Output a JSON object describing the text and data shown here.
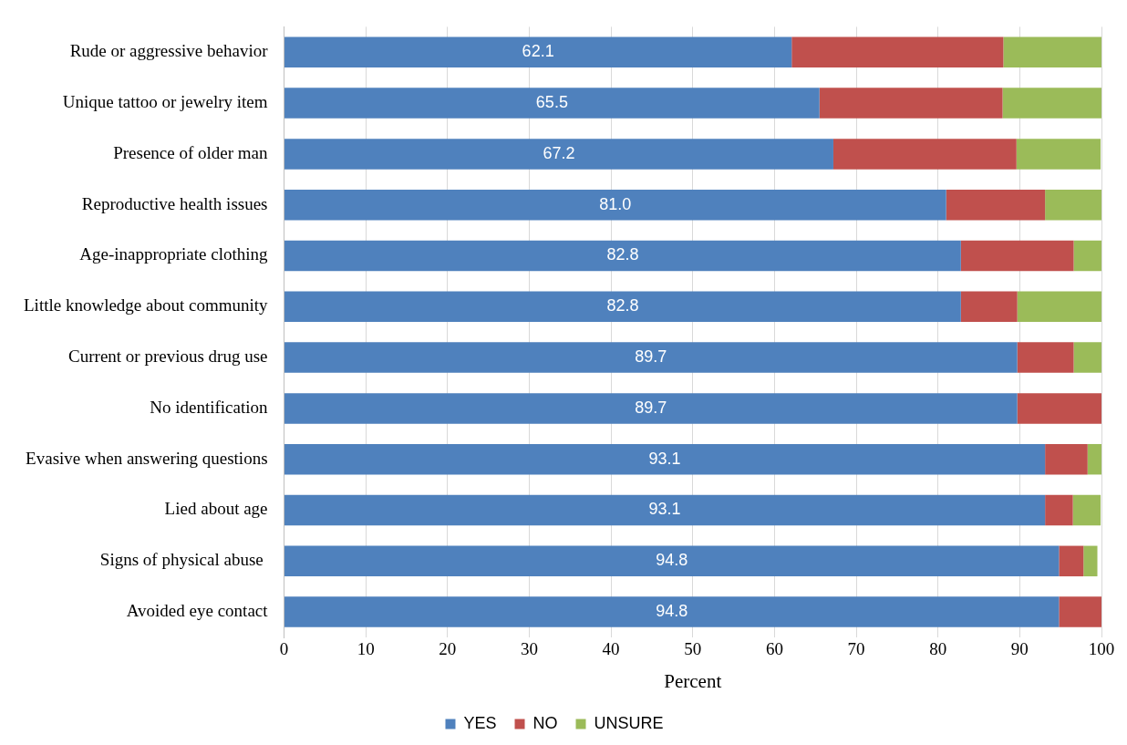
{
  "chart_data": {
    "type": "bar",
    "orientation": "horizontal",
    "stacked": true,
    "categories": [
      "Rude or aggressive behavior",
      "Unique tattoo or jewelry item",
      "Presence of older man",
      "Reproductive health issues",
      "Age-inappropriate clothing",
      "Little knowledge about community",
      "Current or previous drug use",
      "No identification",
      "Evasive when answering questions",
      "Lied about age",
      "Signs of physical abuse ",
      "Avoided eye contact"
    ],
    "series": [
      {
        "name": "YES",
        "color": "#4f81bd",
        "values": [
          62.1,
          65.5,
          67.2,
          81.0,
          82.8,
          82.8,
          89.7,
          89.7,
          93.1,
          93.1,
          94.8,
          94.8
        ],
        "value_labels": [
          "62.1",
          "65.5",
          "67.2",
          "81.0",
          "82.8",
          "82.8",
          "89.7",
          "89.7",
          "93.1",
          "93.1",
          "94.8",
          "94.8"
        ]
      },
      {
        "name": "NO",
        "color": "#c0504d",
        "values": [
          25.9,
          22.4,
          22.4,
          12.1,
          13.8,
          6.9,
          6.9,
          10.3,
          5.2,
          3.4,
          3.0,
          5.2
        ]
      },
      {
        "name": "UNSURE",
        "color": "#9bbb59",
        "values": [
          12.0,
          12.1,
          10.3,
          6.9,
          3.4,
          10.3,
          3.4,
          null,
          1.7,
          3.4,
          1.7,
          null
        ]
      }
    ],
    "xlabel": "Percent",
    "xlim": [
      0,
      100
    ],
    "xticks": [
      0,
      10,
      20,
      30,
      40,
      50,
      60,
      70,
      80,
      90,
      100
    ],
    "grid": "x",
    "legend": "bottom"
  }
}
